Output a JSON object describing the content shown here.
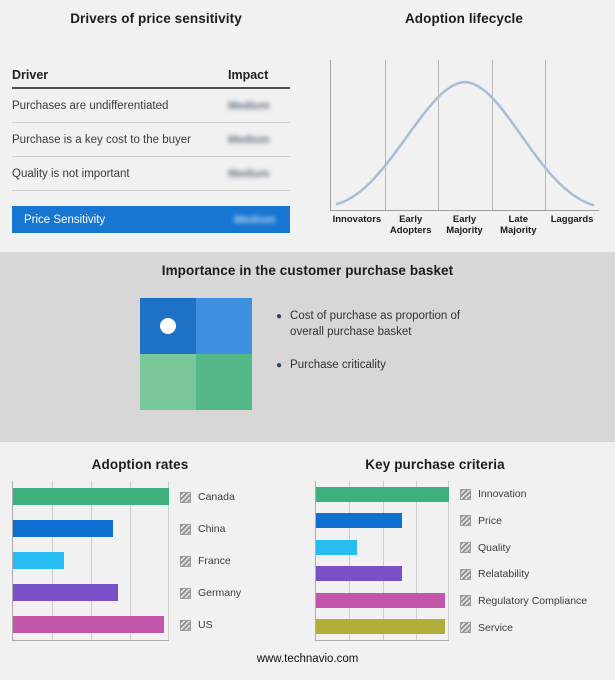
{
  "page": {
    "footer_url": "www.technavio.com"
  },
  "drivers_panel": {
    "title": "Drivers of price sensitivity",
    "table": {
      "col_driver": "Driver",
      "col_impact": "Impact",
      "rows": [
        {
          "driver": "Purchases are undifferentiated",
          "impact": "Medium"
        },
        {
          "driver": "Purchase is a key cost to the buyer",
          "impact": "Medium"
        },
        {
          "driver": "Quality is not important",
          "impact": "Medium"
        }
      ],
      "highlight": {
        "driver": "Price Sensitivity",
        "impact": "Medium"
      },
      "highlight_color": "#1776d1"
    }
  },
  "lifecycle_panel": {
    "title": "Adoption lifecycle",
    "stages": [
      "Innovators",
      "Early Adopters",
      "Early Majority",
      "Late Majority",
      "Laggards"
    ],
    "curve_color": "#a9bdd8"
  },
  "basket_panel": {
    "title": "Importance in the customer purchase basket",
    "bullets": [
      "Cost of purchase as proportion of overall purchase basket",
      "Purchase criticality"
    ],
    "quadrant_colors": {
      "top_left": "#1d72c6",
      "top_right": "#3c90df",
      "bottom_left": "#7ac79b",
      "bottom_right": "#54b888"
    }
  },
  "chart_data": [
    {
      "type": "bar",
      "orientation": "horizontal",
      "title": "Adoption rates",
      "categories": [
        "Canada",
        "China",
        "France",
        "Germany",
        "US"
      ],
      "values": [
        100,
        64,
        33,
        67,
        97
      ],
      "colors": [
        "#3fb07d",
        "#0e6fd1",
        "#28bdf2",
        "#7a50c8",
        "#c356ab"
      ],
      "xlim": [
        0,
        100
      ],
      "grid": true,
      "legend_position": "right"
    },
    {
      "type": "bar",
      "orientation": "horizontal",
      "title": "Key purchase criteria",
      "categories": [
        "Innovation",
        "Price",
        "Quality",
        "Relatability",
        "Regulatory Compliance",
        "Service"
      ],
      "values": [
        100,
        65,
        31,
        65,
        97,
        97
      ],
      "colors": [
        "#3fb07d",
        "#0e6fd1",
        "#28bdf2",
        "#7a50c8",
        "#c356ab",
        "#b2ad39"
      ],
      "xlim": [
        0,
        100
      ],
      "grid": true,
      "legend_position": "right"
    }
  ]
}
